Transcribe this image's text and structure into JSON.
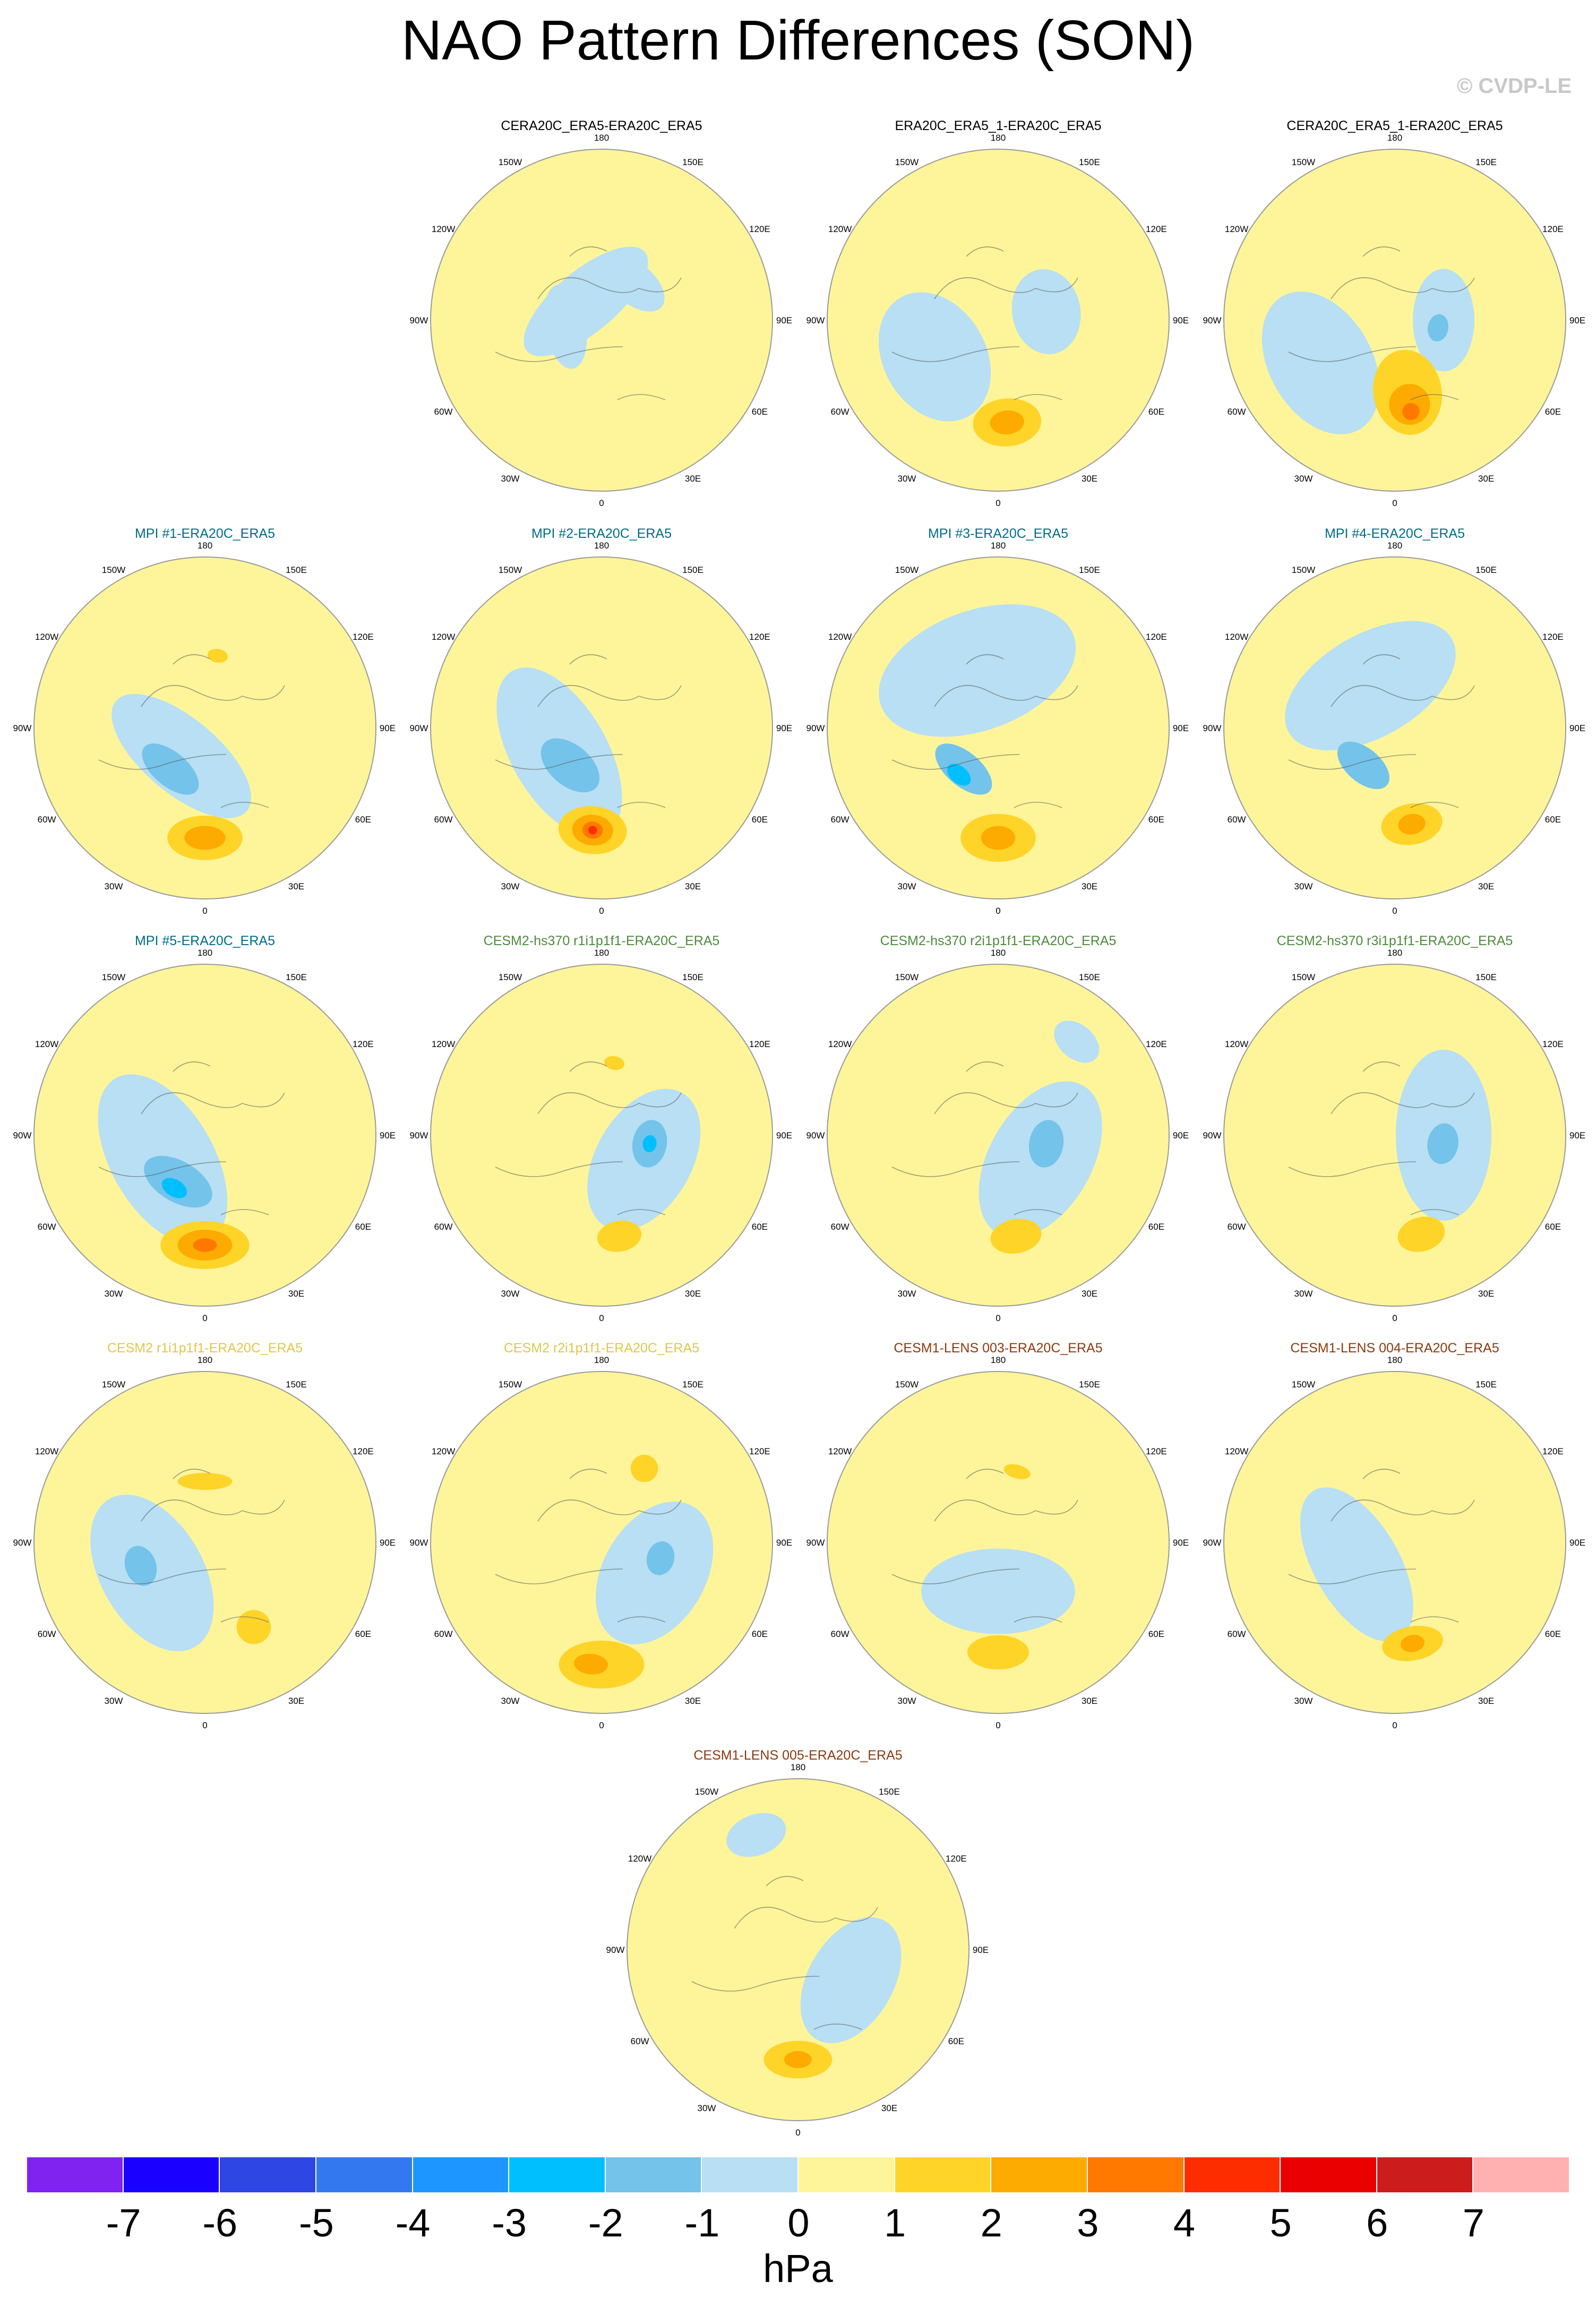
{
  "title": "NAO Pattern Differences (SON)",
  "watermark": "© CVDP-LE",
  "units": "hPa",
  "colors": {
    "yellow": "#fef59a",
    "lightblue": "#b8dff3",
    "blue1": "#74c3ea",
    "blue2": "#00bfff",
    "orange1": "#fed429",
    "orange2": "#fdab00",
    "orange3": "#ff7900",
    "red": "#fe2d00"
  },
  "lon_labels": [
    "180",
    "150E",
    "120E",
    "90E",
    "60E",
    "30E",
    "0",
    "30W",
    "60W",
    "90W",
    "120W",
    "150W"
  ],
  "colorbar": {
    "colors": [
      "#8023f0",
      "#1a00ff",
      "#2e46e4",
      "#3478f0",
      "#1e96ff",
      "#00bfff",
      "#74c3ea",
      "#b8dff3",
      "#fef59a",
      "#fed429",
      "#fdab00",
      "#ff7900",
      "#fe2d00",
      "#ea0000",
      "#cd1c1c",
      "#ffb1b1"
    ],
    "ticks": [
      "-7",
      "-6",
      "-5",
      "-4",
      "-3",
      "-2",
      "-1",
      "0",
      "1",
      "2",
      "3",
      "4",
      "5",
      "6",
      "7"
    ]
  },
  "panels": [
    {
      "title": "CERA20C_ERA5-ERA20C_ERA5",
      "title_color": "#000000",
      "anomalies": [
        {
          "level": "lightblue",
          "lat": 80,
          "lon": 220,
          "rx": 0.45,
          "ry": 0.18
        },
        {
          "level": "lightblue",
          "lat": 75,
          "lon": 280,
          "rx": 0.25,
          "ry": 0.12
        },
        {
          "level": "lightblue",
          "lat": 70,
          "lon": 140,
          "rx": 0.22,
          "ry": 0.12
        }
      ]
    },
    {
      "title": "ERA20C_ERA5_1-ERA20C_ERA5",
      "title_color": "#000000",
      "anomalies": [
        {
          "level": "lightblue",
          "lat": 60,
          "lon": 300,
          "rx": 0.4,
          "ry": 0.3
        },
        {
          "level": "lightblue",
          "lat": 70,
          "lon": 100,
          "rx": 0.25,
          "ry": 0.2
        },
        {
          "level": "orange1",
          "lat": 48,
          "lon": 5,
          "rx": 0.2,
          "ry": 0.14
        },
        {
          "level": "orange2",
          "lat": 48,
          "lon": 5,
          "rx": 0.1,
          "ry": 0.07
        }
      ]
    },
    {
      "title": "CERA20C_ERA5_1-ERA20C_ERA5",
      "title_color": "#000000",
      "anomalies": [
        {
          "level": "lightblue",
          "lat": 55,
          "lon": 300,
          "rx": 0.45,
          "ry": 0.3
        },
        {
          "level": "lightblue",
          "lat": 70,
          "lon": 90,
          "rx": 0.3,
          "ry": 0.18
        },
        {
          "level": "blue1",
          "lat": 72,
          "lon": 80,
          "rx": 0.08,
          "ry": 0.06
        },
        {
          "level": "orange1",
          "lat": 60,
          "lon": 10,
          "rx": 0.2,
          "ry": 0.25
        },
        {
          "level": "orange2",
          "lat": 55,
          "lon": 10,
          "rx": 0.12,
          "ry": 0.12
        },
        {
          "level": "orange3",
          "lat": 52,
          "lon": 10,
          "rx": 0.05,
          "ry": 0.05
        }
      ]
    },
    {
      "title": "MPI #1-ERA20C_ERA5",
      "title_color": "#006c89",
      "anomalies": [
        {
          "level": "lightblue",
          "lat": 75,
          "lon": 320,
          "rx": 0.5,
          "ry": 0.22
        },
        {
          "level": "blue1",
          "lat": 68,
          "lon": 320,
          "rx": 0.2,
          "ry": 0.1
        },
        {
          "level": "orange1",
          "lat": 45,
          "lon": 0,
          "rx": 0.22,
          "ry": 0.13
        },
        {
          "level": "orange2",
          "lat": 45,
          "lon": 0,
          "rx": 0.12,
          "ry": 0.07
        },
        {
          "level": "orange1",
          "lat": 60,
          "lon": 170,
          "rx": 0.06,
          "ry": 0.04
        }
      ]
    },
    {
      "title": "MPI #2-ERA20C_ERA5",
      "title_color": "#006c89",
      "anomalies": [
        {
          "level": "lightblue",
          "lat": 70,
          "lon": 300,
          "rx": 0.55,
          "ry": 0.28
        },
        {
          "level": "blue1",
          "lat": 70,
          "lon": 320,
          "rx": 0.2,
          "ry": 0.12
        },
        {
          "level": "orange1",
          "lat": 48,
          "lon": 355,
          "rx": 0.2,
          "ry": 0.14
        },
        {
          "level": "orange2",
          "lat": 48,
          "lon": 355,
          "rx": 0.12,
          "ry": 0.09
        },
        {
          "level": "orange3",
          "lat": 48,
          "lon": 355,
          "rx": 0.06,
          "ry": 0.05
        },
        {
          "level": "red",
          "lat": 48,
          "lon": 355,
          "rx": 0.025,
          "ry": 0.025
        }
      ]
    },
    {
      "title": "MPI #3-ERA20C_ERA5",
      "title_color": "#006c89",
      "anomalies": [
        {
          "level": "lightblue",
          "lat": 65,
          "lon": 200,
          "rx": 0.6,
          "ry": 0.35
        },
        {
          "level": "blue1",
          "lat": 68,
          "lon": 320,
          "rx": 0.2,
          "ry": 0.1
        },
        {
          "level": "blue2",
          "lat": 65,
          "lon": 320,
          "rx": 0.08,
          "ry": 0.05
        },
        {
          "level": "orange1",
          "lat": 45,
          "lon": 0,
          "rx": 0.22,
          "ry": 0.14
        },
        {
          "level": "orange2",
          "lat": 45,
          "lon": 0,
          "rx": 0.1,
          "ry": 0.07
        }
      ]
    },
    {
      "title": "MPI #4-ERA20C_ERA5",
      "title_color": "#006c89",
      "anomalies": [
        {
          "level": "lightblue",
          "lat": 70,
          "lon": 210,
          "rx": 0.55,
          "ry": 0.3
        },
        {
          "level": "blue1",
          "lat": 70,
          "lon": 320,
          "rx": 0.18,
          "ry": 0.1
        },
        {
          "level": "orange1",
          "lat": 50,
          "lon": 10,
          "rx": 0.18,
          "ry": 0.12
        },
        {
          "level": "orange2",
          "lat": 50,
          "lon": 10,
          "rx": 0.08,
          "ry": 0.06
        }
      ]
    },
    {
      "title": "MPI #5-ERA20C_ERA5",
      "title_color": "#006c89",
      "anomalies": [
        {
          "level": "lightblue",
          "lat": 70,
          "lon": 300,
          "rx": 0.55,
          "ry": 0.3
        },
        {
          "level": "blue1",
          "lat": 68,
          "lon": 330,
          "rx": 0.22,
          "ry": 0.12
        },
        {
          "level": "blue2",
          "lat": 65,
          "lon": 330,
          "rx": 0.08,
          "ry": 0.05
        },
        {
          "level": "orange1",
          "lat": 45,
          "lon": 0,
          "rx": 0.26,
          "ry": 0.14
        },
        {
          "level": "orange2",
          "lat": 45,
          "lon": 0,
          "rx": 0.16,
          "ry": 0.09
        },
        {
          "level": "orange3",
          "lat": 45,
          "lon": 0,
          "rx": 0.07,
          "ry": 0.04
        }
      ]
    },
    {
      "title": "CESM2-hs370 r1i1p1f1-ERA20C_ERA5",
      "title_color": "#4e8a3e",
      "anomalies": [
        {
          "level": "lightblue",
          "lat": 70,
          "lon": 60,
          "rx": 0.45,
          "ry": 0.28
        },
        {
          "level": "blue1",
          "lat": 70,
          "lon": 80,
          "rx": 0.14,
          "ry": 0.1
        },
        {
          "level": "blue2",
          "lat": 70,
          "lon": 80,
          "rx": 0.05,
          "ry": 0.04
        },
        {
          "level": "orange1",
          "lat": 48,
          "lon": 10,
          "rx": 0.13,
          "ry": 0.09
        },
        {
          "level": "orange1",
          "lat": 60,
          "lon": 170,
          "rx": 0.06,
          "ry": 0.04
        }
      ]
    },
    {
      "title": "CESM2-hs370 r2i1p1f1-ERA20C_ERA5",
      "title_color": "#4e8a3e",
      "anomalies": [
        {
          "level": "lightblue",
          "lat": 70,
          "lon": 60,
          "rx": 0.5,
          "ry": 0.3
        },
        {
          "level": "blue1",
          "lat": 70,
          "lon": 80,
          "rx": 0.14,
          "ry": 0.1
        },
        {
          "level": "orange1",
          "lat": 48,
          "lon": 10,
          "rx": 0.15,
          "ry": 0.1
        },
        {
          "level": "lightblue",
          "lat": 40,
          "lon": 140,
          "rx": 0.15,
          "ry": 0.1
        }
      ]
    },
    {
      "title": "CESM2-hs370 r3i1p1f1-ERA20C_ERA5",
      "title_color": "#4e8a3e",
      "anomalies": [
        {
          "level": "lightblue",
          "lat": 70,
          "lon": 90,
          "rx": 0.5,
          "ry": 0.28
        },
        {
          "level": "blue1",
          "lat": 70,
          "lon": 80,
          "rx": 0.12,
          "ry": 0.09
        },
        {
          "level": "orange1",
          "lat": 48,
          "lon": 15,
          "rx": 0.14,
          "ry": 0.1
        }
      ]
    },
    {
      "title": "CESM2 r1i1p1f1-ERA20C_ERA5",
      "title_color": "#e1c74b",
      "anomalies": [
        {
          "level": "lightblue",
          "lat": 65,
          "lon": 300,
          "rx": 0.5,
          "ry": 0.3
        },
        {
          "level": "blue1",
          "lat": 62,
          "lon": 290,
          "rx": 0.12,
          "ry": 0.09
        },
        {
          "level": "orange1",
          "lat": 50,
          "lon": 30,
          "rx": 0.1,
          "ry": 0.1
        },
        {
          "level": "orange1",
          "lat": 65,
          "lon": 180,
          "rx": 0.16,
          "ry": 0.05
        }
      ]
    },
    {
      "title": "CESM2 r2i1p1f1-ERA20C_ERA5",
      "title_color": "#e1c74b",
      "anomalies": [
        {
          "level": "lightblue",
          "lat": 65,
          "lon": 60,
          "rx": 0.45,
          "ry": 0.3
        },
        {
          "level": "blue1",
          "lat": 65,
          "lon": 75,
          "rx": 0.1,
          "ry": 0.08
        },
        {
          "level": "orange1",
          "lat": 40,
          "lon": 0,
          "rx": 0.25,
          "ry": 0.14
        },
        {
          "level": "orange2",
          "lat": 40,
          "lon": 355,
          "rx": 0.1,
          "ry": 0.06
        },
        {
          "level": "orange1",
          "lat": 55,
          "lon": 150,
          "rx": 0.08,
          "ry": 0.08
        }
      ]
    },
    {
      "title": "CESM1-LENS 003-ERA20C_ERA5",
      "title_color": "#8b3a0e",
      "anomalies": [
        {
          "level": "lightblue",
          "lat": 70,
          "lon": 0,
          "rx": 0.45,
          "ry": 0.25
        },
        {
          "level": "orange1",
          "lat": 45,
          "lon": 0,
          "rx": 0.18,
          "ry": 0.1
        },
        {
          "level": "orange1",
          "lat": 60,
          "lon": 165,
          "rx": 0.08,
          "ry": 0.04
        }
      ]
    },
    {
      "title": "CESM1-LENS 004-ERA20C_ERA5",
      "title_color": "#8b3a0e",
      "anomalies": [
        {
          "level": "lightblue",
          "lat": 72,
          "lon": 300,
          "rx": 0.5,
          "ry": 0.25
        },
        {
          "level": "orange1",
          "lat": 48,
          "lon": 10,
          "rx": 0.18,
          "ry": 0.1
        },
        {
          "level": "orange2",
          "lat": 48,
          "lon": 10,
          "rx": 0.07,
          "ry": 0.05
        }
      ]
    },
    {
      "title": "CESM1-LENS 005-ERA20C_ERA5",
      "title_color": "#8b3a0e",
      "anomalies": [
        {
          "level": "lightblue",
          "lat": 65,
          "lon": 60,
          "rx": 0.4,
          "ry": 0.25
        },
        {
          "level": "lightblue",
          "lat": 40,
          "lon": 200,
          "rx": 0.18,
          "ry": 0.12
        },
        {
          "level": "orange1",
          "lat": 45,
          "lon": 0,
          "rx": 0.2,
          "ry": 0.11
        },
        {
          "level": "orange2",
          "lat": 45,
          "lon": 0,
          "rx": 0.08,
          "ry": 0.05
        }
      ]
    }
  ]
}
